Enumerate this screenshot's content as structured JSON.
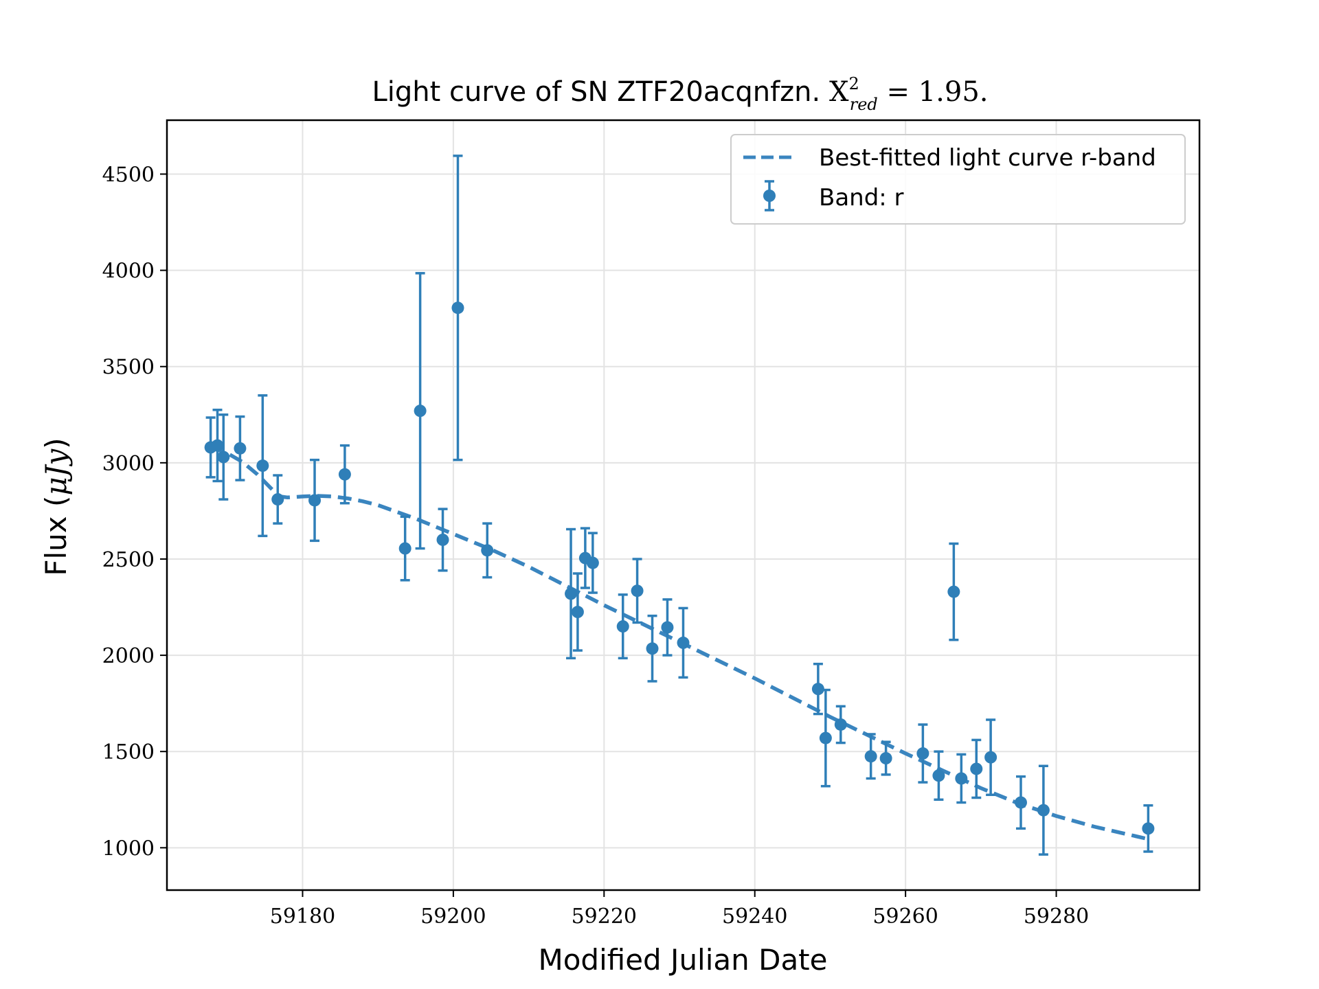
{
  "chart_data": {
    "type": "scatter",
    "title_prefix": "Light curve of SN ZTF20acqnfzn. ",
    "chi2_symbol": "X",
    "chi2_sup": "2",
    "chi2_sub": "red",
    "chi2_value": " = 1.95.",
    "xlabel": "Modified Julian Date",
    "ylabel_prefix": "Flux (",
    "ylabel_unit": "μJy",
    "ylabel_suffix": ")",
    "xlim": [
      59162,
      59299
    ],
    "ylim": [
      780,
      4780
    ],
    "xticks": [
      59180,
      59200,
      59220,
      59240,
      59260,
      59280
    ],
    "yticks": [
      1000,
      1500,
      2000,
      2500,
      3000,
      3500,
      4000,
      4500
    ],
    "grid": true,
    "legend_position": "top-right",
    "colors": {
      "series": "#2f7fb8",
      "fit": "#3a85bf"
    },
    "series": [
      {
        "name": "Band: r",
        "points": [
          {
            "x": 59167.8,
            "y": 3080,
            "err": 155
          },
          {
            "x": 59168.7,
            "y": 3090,
            "err": 185
          },
          {
            "x": 59169.5,
            "y": 3030,
            "err": 220
          },
          {
            "x": 59171.7,
            "y": 3075,
            "err": 165
          },
          {
            "x": 59174.7,
            "y": 2985,
            "err": 365
          },
          {
            "x": 59176.7,
            "y": 2810,
            "err": 125
          },
          {
            "x": 59181.6,
            "y": 2805,
            "err": 210
          },
          {
            "x": 59185.6,
            "y": 2940,
            "err": 150
          },
          {
            "x": 59193.6,
            "y": 2555,
            "err": 165
          },
          {
            "x": 59195.6,
            "y": 3270,
            "err": 715
          },
          {
            "x": 59198.6,
            "y": 2600,
            "err": 160
          },
          {
            "x": 59200.6,
            "y": 3805,
            "err": 790
          },
          {
            "x": 59204.5,
            "y": 2545,
            "err": 140
          },
          {
            "x": 59215.6,
            "y": 2320,
            "err": 335
          },
          {
            "x": 59216.5,
            "y": 2225,
            "err": 200
          },
          {
            "x": 59217.5,
            "y": 2505,
            "err": 155
          },
          {
            "x": 59218.5,
            "y": 2480,
            "err": 155
          },
          {
            "x": 59222.5,
            "y": 2150,
            "err": 165
          },
          {
            "x": 59224.4,
            "y": 2335,
            "err": 165
          },
          {
            "x": 59226.4,
            "y": 2035,
            "err": 170
          },
          {
            "x": 59228.4,
            "y": 2145,
            "err": 145
          },
          {
            "x": 59230.5,
            "y": 2065,
            "err": 180
          },
          {
            "x": 59248.4,
            "y": 1825,
            "err": 130
          },
          {
            "x": 59249.4,
            "y": 1570,
            "err": 250
          },
          {
            "x": 59251.4,
            "y": 1640,
            "err": 95
          },
          {
            "x": 59255.4,
            "y": 1475,
            "err": 115
          },
          {
            "x": 59257.4,
            "y": 1465,
            "err": 85
          },
          {
            "x": 59262.3,
            "y": 1490,
            "err": 150
          },
          {
            "x": 59264.4,
            "y": 1375,
            "err": 125
          },
          {
            "x": 59266.4,
            "y": 2330,
            "err": 250
          },
          {
            "x": 59267.4,
            "y": 1360,
            "err": 125
          },
          {
            "x": 59269.4,
            "y": 1410,
            "err": 150
          },
          {
            "x": 59271.3,
            "y": 1470,
            "err": 195
          },
          {
            "x": 59275.3,
            "y": 1235,
            "err": 135
          },
          {
            "x": 59278.3,
            "y": 1195,
            "err": 230
          },
          {
            "x": 59292.2,
            "y": 1100,
            "err": 120
          }
        ]
      }
    ],
    "fit": {
      "name": "Best-fitted light curve r-band",
      "x": [
        59167.8,
        59170,
        59172,
        59174,
        59176,
        59177,
        59178,
        59180,
        59182,
        59184,
        59186,
        59188,
        59190,
        59195,
        59200,
        59205,
        59210,
        59215,
        59220,
        59225,
        59230,
        59235,
        59240,
        59245,
        59250,
        59255,
        59260,
        59265,
        59270,
        59275,
        59280,
        59285,
        59292.2
      ],
      "y": [
        3080,
        3050,
        3005,
        2940,
        2860,
        2825,
        2820,
        2825,
        2828,
        2825,
        2815,
        2800,
        2780,
        2710,
        2630,
        2550,
        2460,
        2360,
        2260,
        2165,
        2070,
        1975,
        1880,
        1780,
        1680,
        1585,
        1490,
        1400,
        1310,
        1230,
        1165,
        1110,
        1045
      ]
    }
  }
}
